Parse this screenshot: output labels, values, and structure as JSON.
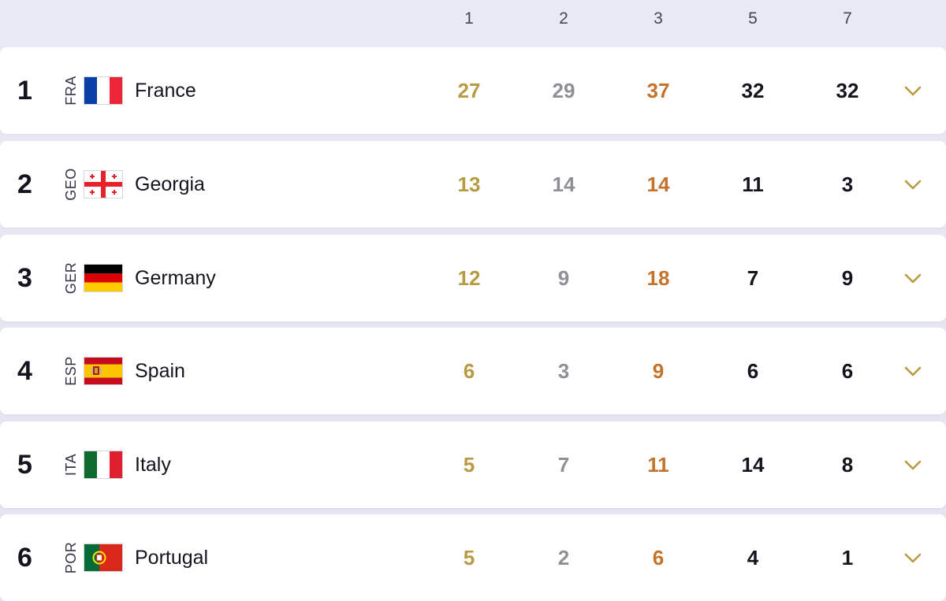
{
  "colors": {
    "gold": "#b89a43",
    "silver": "#8f8f96",
    "bronze": "#c4732a",
    "dark": "#14141e",
    "chevron": "#b89a43"
  },
  "columns": [
    "1",
    "2",
    "3",
    "5",
    "7"
  ],
  "rows": [
    {
      "rank": "1",
      "code": "FRA",
      "country": "France",
      "flag_icon": "france-flag-icon",
      "values": [
        "27",
        "29",
        "37",
        "32",
        "32"
      ]
    },
    {
      "rank": "2",
      "code": "GEO",
      "country": "Georgia",
      "flag_icon": "georgia-flag-icon",
      "values": [
        "13",
        "14",
        "14",
        "11",
        "3"
      ]
    },
    {
      "rank": "3",
      "code": "GER",
      "country": "Germany",
      "flag_icon": "germany-flag-icon",
      "values": [
        "12",
        "9",
        "18",
        "7",
        "9"
      ]
    },
    {
      "rank": "4",
      "code": "ESP",
      "country": "Spain",
      "flag_icon": "spain-flag-icon",
      "values": [
        "6",
        "3",
        "9",
        "6",
        "6"
      ]
    },
    {
      "rank": "5",
      "code": "ITA",
      "country": "Italy",
      "flag_icon": "italy-flag-icon",
      "values": [
        "5",
        "7",
        "11",
        "14",
        "8"
      ]
    },
    {
      "rank": "6",
      "code": "POR",
      "country": "Portugal",
      "flag_icon": "portugal-flag-icon",
      "values": [
        "5",
        "2",
        "6",
        "4",
        "1"
      ]
    }
  ],
  "expand_icon": "chevron-down-icon"
}
